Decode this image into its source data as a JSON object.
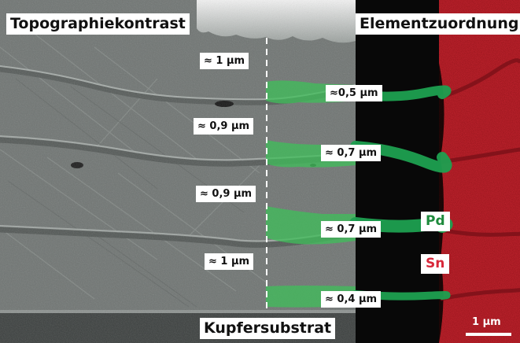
{
  "panels": {
    "left_title": "Topographiekontrast",
    "right_title": "Elementzuordnung"
  },
  "measurements_left": [
    "≈ 1 µm",
    "≈ 0,9 µm",
    "≈ 0,9 µm",
    "≈ 1 µm"
  ],
  "measurements_right": [
    "≈0,5 µm",
    "≈ 0,7 µm",
    "≈ 0,7 µm",
    "≈ 0,4 µm"
  ],
  "substrate_label": "Kupfersubstrat",
  "elements": {
    "pd": {
      "label": "Pd",
      "color": "#1e8a3c"
    },
    "sn": {
      "label": "Sn",
      "color": "#d8283a"
    }
  },
  "scale_bar": {
    "label": "1 µm"
  },
  "colors": {
    "sem_gray": "#6f7472",
    "edx_background": "#080808",
    "sn_map": "#c82632",
    "pd_map": "#1ea050",
    "highlight_overlay": "#3fbf5a"
  }
}
